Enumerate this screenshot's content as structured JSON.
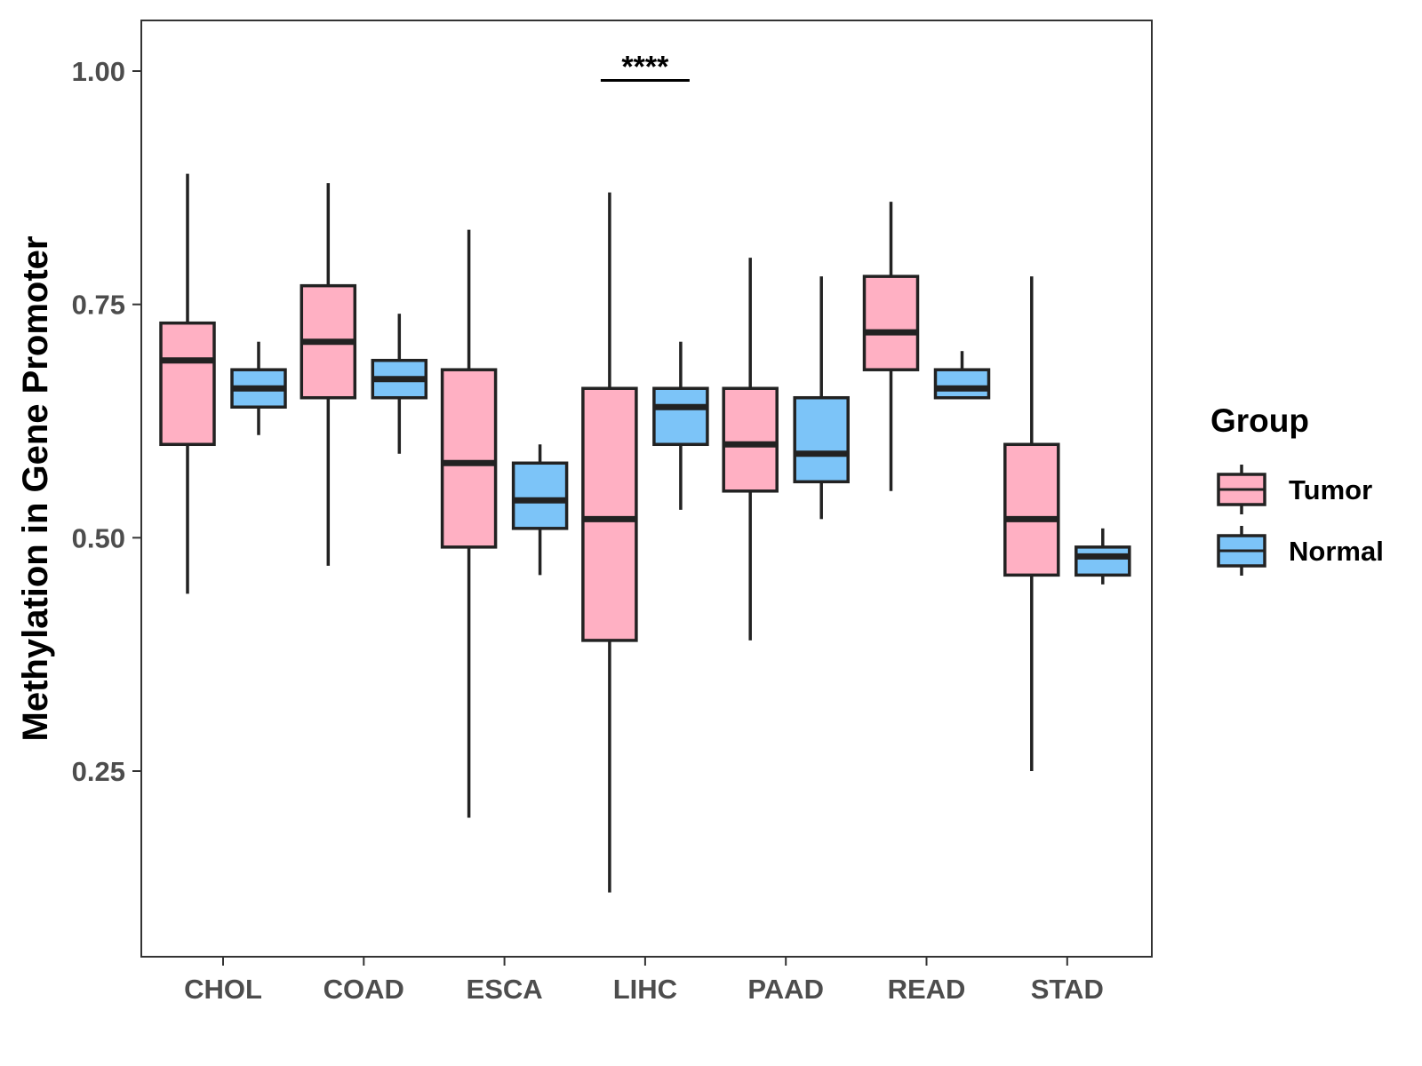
{
  "chart_data": {
    "type": "boxplot",
    "title": "",
    "xlabel": "",
    "ylabel": "Methylation in Gene Promoter",
    "ylim": [
      0.07,
      1.05
    ],
    "yticks": [
      0.25,
      0.5,
      0.75,
      1.0
    ],
    "ytick_labels": [
      "0.25",
      "0.50",
      "0.75",
      "1.00"
    ],
    "categories": [
      "CHOL",
      "COAD",
      "ESCA",
      "LIHC",
      "PAAD",
      "READ",
      "STAD"
    ],
    "legend": {
      "title": "Group",
      "position": "right",
      "entries": [
        "Tumor",
        "Normal"
      ]
    },
    "series": [
      {
        "name": "Tumor",
        "color": "#FFB0C3",
        "boxes": [
          {
            "min": 0.44,
            "q1": 0.6,
            "median": 0.69,
            "q3": 0.73,
            "max": 0.89
          },
          {
            "min": 0.47,
            "q1": 0.65,
            "median": 0.71,
            "q3": 0.77,
            "max": 0.88
          },
          {
            "min": 0.2,
            "q1": 0.49,
            "median": 0.58,
            "q3": 0.68,
            "max": 0.83
          },
          {
            "min": 0.12,
            "q1": 0.39,
            "median": 0.52,
            "q3": 0.66,
            "max": 0.87
          },
          {
            "min": 0.39,
            "q1": 0.55,
            "median": 0.6,
            "q3": 0.66,
            "max": 0.8
          },
          {
            "min": 0.55,
            "q1": 0.68,
            "median": 0.72,
            "q3": 0.78,
            "max": 0.86
          },
          {
            "min": 0.25,
            "q1": 0.46,
            "median": 0.52,
            "q3": 0.6,
            "max": 0.78
          }
        ]
      },
      {
        "name": "Normal",
        "color": "#7CC4F8",
        "boxes": [
          {
            "min": 0.61,
            "q1": 0.64,
            "median": 0.66,
            "q3": 0.68,
            "max": 0.71
          },
          {
            "min": 0.59,
            "q1": 0.65,
            "median": 0.67,
            "q3": 0.69,
            "max": 0.74
          },
          {
            "min": 0.46,
            "q1": 0.51,
            "median": 0.54,
            "q3": 0.58,
            "max": 0.6
          },
          {
            "min": 0.53,
            "q1": 0.6,
            "median": 0.64,
            "q3": 0.66,
            "max": 0.71
          },
          {
            "min": 0.52,
            "q1": 0.56,
            "median": 0.59,
            "q3": 0.65,
            "max": 0.78
          },
          {
            "min": 0.65,
            "q1": 0.65,
            "median": 0.66,
            "q3": 0.68,
            "max": 0.7
          },
          {
            "min": 0.45,
            "q1": 0.46,
            "median": 0.48,
            "q3": 0.49,
            "max": 0.51
          }
        ]
      }
    ],
    "annotations": [
      {
        "category": "LIHC",
        "text": "****",
        "y": 0.99
      }
    ]
  }
}
